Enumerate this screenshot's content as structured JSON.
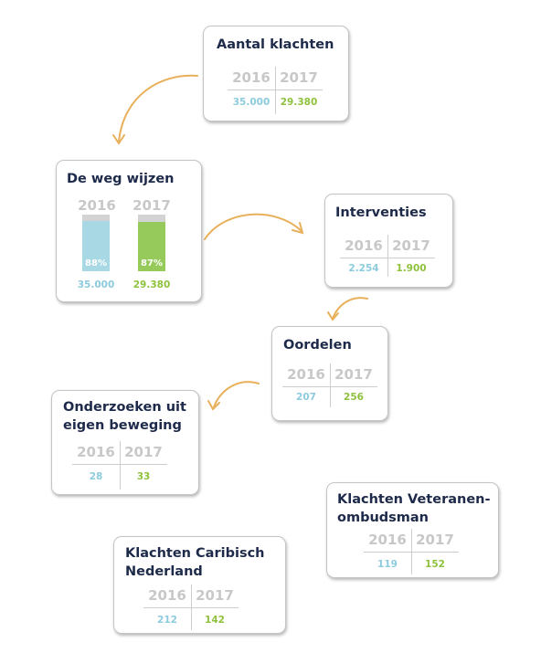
{
  "colors": {
    "2016": "#8ccbdd",
    "2017": "#8ec13d",
    "arrow": "#e8b05a",
    "title": "#1e2a4a"
  },
  "cards": {
    "aantal": {
      "title": "Aantal klachten",
      "year1": "2016",
      "year2": "2017",
      "value1": "35.000",
      "value2": "29.380"
    },
    "weg": {
      "title": "De weg wijzen",
      "year1": "2016",
      "year2": "2017",
      "pct1": "88%",
      "pct2": "87%",
      "pct1_value": 88,
      "pct2_value": 87,
      "value1": "35.000",
      "value2": "29.380"
    },
    "interventies": {
      "title": "Interventies",
      "year1": "2016",
      "year2": "2017",
      "value1": "2.254",
      "value2": "1.900"
    },
    "oordelen": {
      "title": "Oordelen",
      "year1": "2016",
      "year2": "2017",
      "value1": "207",
      "value2": "256"
    },
    "onderzoeken": {
      "title": "Onderzoeken uit eigen beweging",
      "year1": "2016",
      "year2": "2017",
      "value1": "28",
      "value2": "33"
    },
    "veteranen": {
      "title": "Klachten Veteranen-ombudsman",
      "year1": "2016",
      "year2": "2017",
      "value1": "119",
      "value2": "152"
    },
    "caribisch": {
      "title": "Klachten Caribisch Nederland",
      "year1": "2016",
      "year2": "2017",
      "value1": "212",
      "value2": "142"
    }
  }
}
